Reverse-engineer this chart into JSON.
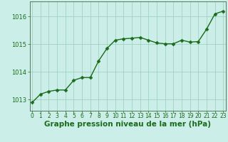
{
  "x": [
    0,
    1,
    2,
    3,
    4,
    5,
    6,
    7,
    8,
    9,
    10,
    11,
    12,
    13,
    14,
    15,
    16,
    17,
    18,
    19,
    20,
    21,
    22,
    23
  ],
  "y": [
    1012.9,
    1013.2,
    1013.3,
    1013.35,
    1013.35,
    1013.7,
    1013.8,
    1013.8,
    1014.4,
    1014.85,
    1015.15,
    1015.2,
    1015.22,
    1015.25,
    1015.15,
    1015.05,
    1015.02,
    1015.02,
    1015.15,
    1015.08,
    1015.1,
    1015.55,
    1016.1,
    1016.2
  ],
  "line_color": "#1a6b1a",
  "marker": "D",
  "marker_size": 2.5,
  "line_width": 1.0,
  "bg_color": "#cceee8",
  "grid_color": "#99ccbb",
  "ylabel_ticks": [
    1013,
    1014,
    1015,
    1016
  ],
  "xlabel_label": "Graphe pression niveau de la mer (hPa)",
  "xlabel_fontsize": 7.5,
  "xlabel_color": "#1a6b1a",
  "tick_label_color": "#1a6b1a",
  "tick_fontsize": 5.5,
  "ytick_fontsize": 6.0,
  "xlim": [
    -0.3,
    23.3
  ],
  "ylim": [
    1012.6,
    1016.55
  ],
  "xticks": [
    0,
    1,
    2,
    3,
    4,
    5,
    6,
    7,
    8,
    9,
    10,
    11,
    12,
    13,
    14,
    15,
    16,
    17,
    18,
    19,
    20,
    21,
    22,
    23
  ],
  "spine_color": "#446644"
}
